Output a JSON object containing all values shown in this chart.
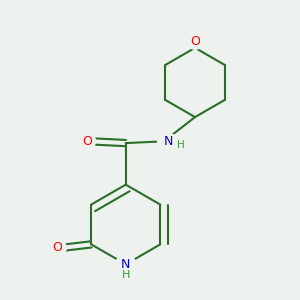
{
  "bg_color": "#eef2ee",
  "atom_colors": {
    "O": "#ff0000",
    "N": "#0000cc",
    "C": "#1a6e1a",
    "H": "#3a9a3a"
  },
  "bond_color": "#2a6e2a",
  "bond_width": 1.5,
  "figsize": [
    3.0,
    3.0
  ],
  "dpi": 100
}
